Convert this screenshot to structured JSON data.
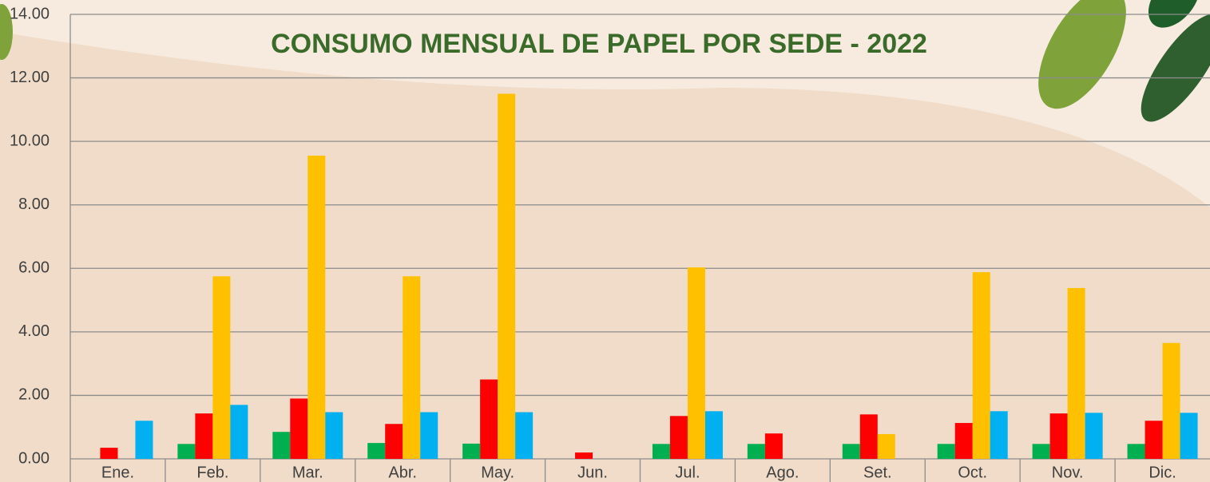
{
  "chart_data": {
    "type": "bar",
    "title": "CONSUMO MENSUAL DE PAPEL POR SEDE - 2022",
    "categories": [
      "Ene.",
      "Feb.",
      "Mar.",
      "Abr.",
      "May.",
      "Jun.",
      "Jul.",
      "Ago.",
      "Set.",
      "Oct.",
      "Nov.",
      "Dic."
    ],
    "series": [
      {
        "color": "#00b050",
        "values": [
          0,
          0.47,
          0.85,
          0.5,
          0.48,
          0,
          0.47,
          0.47,
          0.47,
          0.47,
          0.47,
          0.47
        ]
      },
      {
        "color": "#ff0000",
        "values": [
          0.35,
          1.43,
          1.9,
          1.1,
          2.5,
          0.2,
          1.35,
          0.8,
          1.4,
          1.13,
          1.43,
          1.2
        ]
      },
      {
        "color": "#ffc000",
        "values": [
          0,
          5.75,
          9.55,
          5.75,
          11.5,
          0,
          6.03,
          0,
          0.78,
          5.88,
          5.38,
          3.65
        ]
      },
      {
        "color": "#00b0f0",
        "values": [
          1.2,
          1.7,
          1.47,
          1.47,
          1.47,
          0,
          1.5,
          0,
          0,
          1.5,
          1.45,
          1.45
        ]
      }
    ],
    "ylim": [
      0,
      14
    ],
    "yticks": [
      {
        "value": 0,
        "label": "0.00"
      },
      {
        "value": 2,
        "label": "2.00"
      },
      {
        "value": 4,
        "label": "4.00"
      },
      {
        "value": 6,
        "label": "6.00"
      },
      {
        "value": 8,
        "label": "8.00"
      },
      {
        "value": 10,
        "label": "10.00"
      },
      {
        "value": 12,
        "label": "12.00"
      },
      {
        "value": 14,
        "label": "14.00"
      }
    ],
    "grid": true
  }
}
